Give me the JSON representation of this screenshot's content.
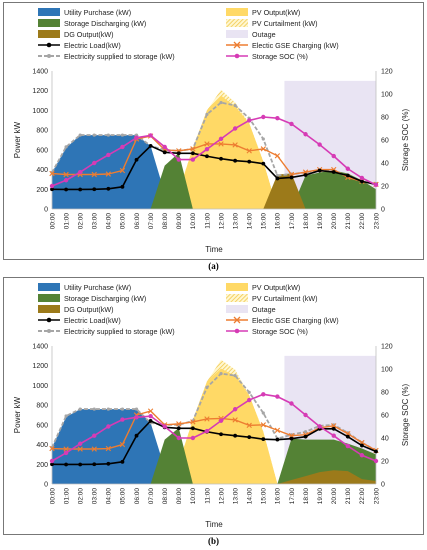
{
  "legend": [
    {
      "label": "Utility Purchase (kW)",
      "kind": "area",
      "color": "#2e75b6"
    },
    {
      "label": "PV Output(kW)",
      "kind": "area",
      "color": "#ffd966"
    },
    {
      "label": "Storage Discharging (kW)",
      "kind": "area",
      "color": "#548235"
    },
    {
      "label": "PV Curtailment (kW)",
      "kind": "hatch",
      "color": "#f2c94c"
    },
    {
      "label": "DG Output(kW)",
      "kind": "area",
      "color": "#9c7a1a"
    },
    {
      "label": "Outage",
      "kind": "area",
      "color": "#e9e4f3"
    },
    {
      "label": "Electric Load(kW)",
      "kind": "line-dot",
      "color": "#000000"
    },
    {
      "label": "Electic GSE Charging (kW)",
      "kind": "line-x",
      "color": "#ed7d31"
    },
    {
      "label": "Electricity supplied to storage (kW)",
      "kind": "line-dash",
      "color": "#a6a6a6"
    },
    {
      "label": "Storage SOC (%)",
      "kind": "line-dot",
      "color": "#d63bb5"
    }
  ],
  "captions": {
    "a": "(a)",
    "b": "(b)"
  },
  "chart_data": [
    {
      "type": "area",
      "xlabel": "Time",
      "ylabel": "Power kW",
      "y2label": "Storage SOC (%)",
      "ylim": [
        0,
        1400
      ],
      "yticks": [
        0,
        200,
        400,
        600,
        800,
        1000,
        1200,
        1400
      ],
      "y2lim": [
        0,
        120
      ],
      "y2ticks": [
        0,
        20,
        40,
        60,
        80,
        100,
        120
      ],
      "categories": [
        "00:00",
        "01:00",
        "02:00",
        "03:00",
        "04:00",
        "05:00",
        "06:00",
        "07:00",
        "08:00",
        "09:00",
        "10:00",
        "11:00",
        "12:00",
        "13:00",
        "14:00",
        "15:00",
        "16:00",
        "17:00",
        "18:00",
        "19:00",
        "20:00",
        "21:00",
        "22:00",
        "23:00"
      ],
      "outage": {
        "start": 16.5,
        "end": 23
      },
      "areas": {
        "utility_purchase": [
          370,
          620,
          750,
          750,
          750,
          750,
          750,
          640,
          160,
          0,
          0,
          0,
          0,
          0,
          0,
          0,
          0,
          0,
          0,
          0,
          0,
          0,
          0,
          0
        ],
        "storage_discharging": [
          0,
          0,
          0,
          0,
          0,
          0,
          0,
          0,
          440,
          570,
          0,
          0,
          0,
          0,
          0,
          0,
          0,
          0,
          340,
          370,
          390,
          360,
          290,
          200
        ],
        "pv_output": [
          0,
          0,
          0,
          0,
          0,
          0,
          0,
          0,
          0,
          180,
          620,
          1000,
          1150,
          1040,
          870,
          480,
          0,
          0,
          0,
          0,
          0,
          0,
          0,
          0
        ],
        "pv_curtailment": [
          0,
          0,
          0,
          0,
          0,
          0,
          0,
          0,
          0,
          0,
          0,
          0,
          60,
          40,
          0,
          0,
          0,
          0,
          0,
          0,
          0,
          0,
          0,
          0
        ],
        "dg_output": [
          0,
          0,
          0,
          0,
          0,
          0,
          0,
          0,
          0,
          0,
          0,
          0,
          0,
          0,
          0,
          0,
          350,
          360,
          0,
          0,
          0,
          0,
          0,
          0
        ]
      },
      "series": [
        {
          "name": "Electric Load(kW)",
          "values": [
            200,
            198,
            198,
            200,
            205,
            225,
            500,
            640,
            575,
            565,
            565,
            535,
            510,
            490,
            480,
            460,
            310,
            320,
            345,
            390,
            375,
            340,
            280,
            250
          ]
        },
        {
          "name": "Electic GSE Charging (kW)",
          "values": [
            360,
            350,
            350,
            350,
            355,
            390,
            710,
            740,
            600,
            590,
            610,
            660,
            660,
            650,
            590,
            610,
            540,
            350,
            375,
            400,
            400,
            320,
            280,
            250
          ]
        },
        {
          "name": "Electricity supplied to storage (kW)",
          "values": [
            370,
            630,
            750,
            750,
            750,
            750,
            750,
            640,
            600,
            590,
            610,
            960,
            1080,
            1050,
            920,
            710,
            340,
            355,
            370,
            395,
            390,
            330,
            280,
            250
          ]
        },
        {
          "name": "Storage SOC (%)",
          "axis": "right",
          "values": [
            20,
            25,
            32,
            40,
            47,
            54,
            62,
            64,
            54,
            43,
            43,
            52,
            61,
            70,
            77,
            80,
            79,
            74,
            65,
            56,
            46,
            35,
            27,
            21
          ]
        }
      ]
    },
    {
      "type": "area",
      "xlabel": "Time",
      "ylabel": "Power kW",
      "y2label": "Storage SOC (%)",
      "ylim": [
        0,
        1400
      ],
      "yticks": [
        0,
        200,
        400,
        600,
        800,
        1000,
        1200,
        1400
      ],
      "y2lim": [
        0,
        120
      ],
      "y2ticks": [
        0,
        20,
        40,
        60,
        80,
        100,
        120
      ],
      "categories": [
        "00:00",
        "01:00",
        "02:00",
        "03:00",
        "04:00",
        "05:00",
        "06:00",
        "07:00",
        "08:00",
        "09:00",
        "10:00",
        "11:00",
        "12:00",
        "13:00",
        "14:00",
        "15:00",
        "16:00",
        "17:00",
        "18:00",
        "19:00",
        "20:00",
        "21:00",
        "22:00",
        "23:00"
      ],
      "outage": {
        "start": 16.5,
        "end": 23
      },
      "areas": {
        "utility_purchase": [
          370,
          680,
          760,
          760,
          760,
          760,
          760,
          620,
          160,
          0,
          0,
          0,
          0,
          0,
          0,
          0,
          0,
          0,
          0,
          0,
          0,
          0,
          0,
          0
        ],
        "storage_discharging": [
          0,
          0,
          0,
          0,
          0,
          0,
          0,
          0,
          450,
          570,
          0,
          0,
          0,
          0,
          0,
          0,
          0,
          460,
          450,
          450,
          450,
          410,
          360,
          300
        ],
        "pv_output": [
          0,
          0,
          0,
          0,
          0,
          0,
          0,
          0,
          0,
          210,
          650,
          1040,
          1170,
          1100,
          900,
          530,
          0,
          0,
          0,
          0,
          0,
          0,
          0,
          0
        ],
        "pv_curtailment": [
          0,
          0,
          0,
          0,
          0,
          0,
          0,
          0,
          0,
          0,
          0,
          0,
          90,
          60,
          0,
          0,
          0,
          0,
          0,
          0,
          0,
          0,
          0,
          0
        ],
        "dg_output": [
          0,
          0,
          0,
          0,
          0,
          0,
          0,
          0,
          0,
          0,
          0,
          0,
          0,
          0,
          0,
          0,
          0,
          40,
          80,
          120,
          140,
          130,
          50,
          30
        ]
      },
      "series": [
        {
          "name": "Electric Load(kW)",
          "values": [
            200,
            198,
            198,
            200,
            205,
            225,
            490,
            640,
            575,
            565,
            565,
            530,
            505,
            490,
            475,
            455,
            450,
            460,
            480,
            560,
            560,
            480,
            390,
            330
          ]
        },
        {
          "name": "Electic GSE Charging (kW)",
          "values": [
            360,
            355,
            355,
            355,
            360,
            400,
            700,
            740,
            600,
            610,
            630,
            660,
            665,
            650,
            595,
            600,
            545,
            490,
            500,
            570,
            590,
            510,
            420,
            340
          ]
        },
        {
          "name": "Electricity supplied to storage (kW)",
          "values": [
            370,
            690,
            760,
            760,
            760,
            760,
            760,
            620,
            600,
            600,
            640,
            980,
            1120,
            1100,
            930,
            720,
            460,
            500,
            530,
            590,
            600,
            520,
            420,
            340
          ]
        },
        {
          "name": "Storage SOC (%)",
          "axis": "right",
          "values": [
            20,
            27,
            35,
            42,
            50,
            56,
            58,
            59,
            50,
            40,
            40,
            46,
            55,
            65,
            73,
            78,
            76,
            70,
            60,
            50,
            42,
            33,
            25,
            20
          ]
        }
      ]
    }
  ]
}
